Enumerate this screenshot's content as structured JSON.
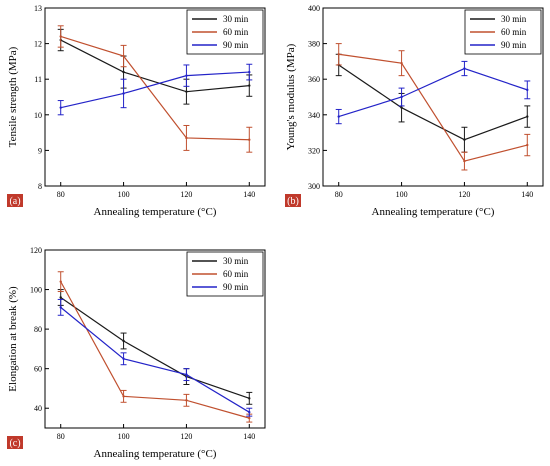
{
  "colors": {
    "series_30": "#1a1a1a",
    "series_60": "#c0502f",
    "series_90": "#2323c8",
    "panel_label_bg": "#c0392b"
  },
  "chart_data": [
    {
      "type": "line",
      "panel_label": "(a)",
      "xlabel": "Annealing temperature (°C)",
      "ylabel": "Tensile strength (MPa)",
      "x": [
        80,
        100,
        120,
        140
      ],
      "xticks": [
        "80",
        "100",
        "120",
        "140"
      ],
      "xlim": [
        75,
        145
      ],
      "ylim": [
        8,
        13
      ],
      "yticks": [
        "8",
        "9",
        "10",
        "11",
        "12",
        "13"
      ],
      "legend_position": "top-right",
      "series": [
        {
          "name": "30 min",
          "color": "#1a1a1a",
          "values": [
            12.1,
            11.2,
            10.65,
            10.82
          ],
          "errors": [
            0.3,
            0.45,
            0.35,
            0.3
          ]
        },
        {
          "name": "60 min",
          "color": "#c0502f",
          "values": [
            12.2,
            11.65,
            9.35,
            9.3
          ],
          "errors": [
            0.3,
            0.3,
            0.35,
            0.35
          ]
        },
        {
          "name": "90 min",
          "color": "#2323c8",
          "values": [
            10.2,
            10.6,
            11.1,
            11.2
          ],
          "errors": [
            0.2,
            0.4,
            0.3,
            0.22
          ]
        }
      ]
    },
    {
      "type": "line",
      "panel_label": "(b)",
      "xlabel": "Annealing temperature (°C)",
      "ylabel": "Young's modulus (MPa)",
      "x": [
        80,
        100,
        120,
        140
      ],
      "xticks": [
        "80",
        "100",
        "120",
        "140"
      ],
      "xlim": [
        75,
        145
      ],
      "ylim": [
        300,
        400
      ],
      "yticks": [
        "300",
        "320",
        "340",
        "360",
        "380",
        "400"
      ],
      "legend_position": "top-right",
      "series": [
        {
          "name": "30 min",
          "color": "#1a1a1a",
          "values": [
            368,
            344,
            326,
            339
          ],
          "errors": [
            6,
            8,
            7,
            6
          ]
        },
        {
          "name": "60 min",
          "color": "#c0502f",
          "values": [
            374,
            369,
            314,
            323
          ],
          "errors": [
            6,
            7,
            5,
            6
          ]
        },
        {
          "name": "90 min",
          "color": "#2323c8",
          "values": [
            339,
            350,
            366,
            354
          ],
          "errors": [
            4,
            5,
            4,
            5
          ]
        }
      ]
    },
    {
      "type": "line",
      "panel_label": "(c)",
      "xlabel": "Annealing temperature (°C)",
      "ylabel": "Elongation at break (%)",
      "x": [
        80,
        100,
        120,
        140
      ],
      "xticks": [
        "80",
        "100",
        "120",
        "140"
      ],
      "xlim": [
        75,
        145
      ],
      "ylim": [
        30,
        120
      ],
      "yticks": [
        "40",
        "60",
        "80",
        "100",
        "120"
      ],
      "legend_position": "top-right",
      "series": [
        {
          "name": "30 min",
          "color": "#1a1a1a",
          "values": [
            96,
            74,
            56,
            45
          ],
          "errors": [
            4,
            4,
            4,
            3
          ]
        },
        {
          "name": "60 min",
          "color": "#c0502f",
          "values": [
            104,
            46,
            44,
            35
          ],
          "errors": [
            5,
            3,
            3,
            2
          ]
        },
        {
          "name": "90 min",
          "color": "#2323c8",
          "values": [
            91,
            65,
            57,
            38
          ],
          "errors": [
            4,
            3,
            3,
            2
          ]
        }
      ]
    }
  ]
}
